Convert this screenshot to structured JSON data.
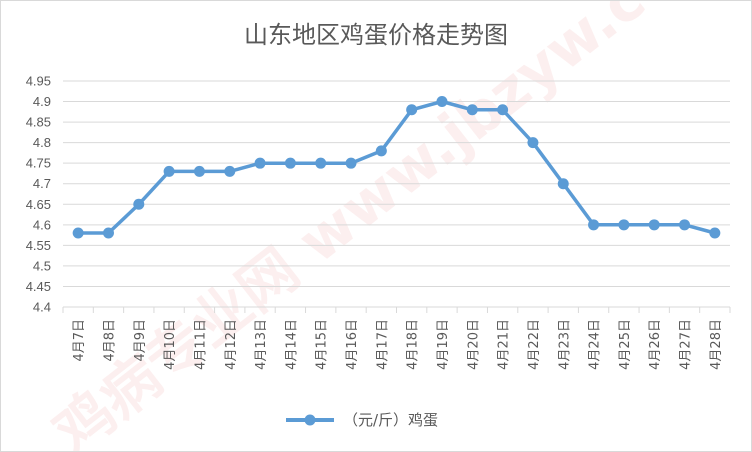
{
  "chart_data": {
    "type": "line",
    "title": "山东地区鸡蛋价格走势图",
    "xlabel": "",
    "ylabel": "",
    "x": [
      "4月7日",
      "4月8日",
      "4月9日",
      "4月10日",
      "4月11日",
      "4月12日",
      "4月13日",
      "4月14日",
      "4月15日",
      "4月16日",
      "4月17日",
      "4月18日",
      "4月19日",
      "4月20日",
      "4月21日",
      "4月22日",
      "4月23日",
      "4月24日",
      "4月25日",
      "4月26日",
      "4月27日",
      "4月28日"
    ],
    "series": [
      {
        "name": "（元/斤）鸡蛋",
        "values": [
          4.58,
          4.58,
          4.65,
          4.73,
          4.73,
          4.73,
          4.75,
          4.75,
          4.75,
          4.75,
          4.78,
          4.88,
          4.9,
          4.88,
          4.88,
          4.8,
          4.7,
          4.6,
          4.6,
          4.6,
          4.6,
          4.58
        ]
      }
    ],
    "ylim": [
      4.4,
      4.95
    ],
    "yticks": [
      "4.95",
      "4.9",
      "4.85",
      "4.8",
      "4.75",
      "4.7",
      "4.65",
      "4.6",
      "4.55",
      "4.5",
      "4.45",
      "4.4"
    ],
    "grid": true,
    "legend_position": "bottom",
    "series_color": "#5b9bd5",
    "watermark": "鸡病专业网 www.jbzyw.com"
  }
}
